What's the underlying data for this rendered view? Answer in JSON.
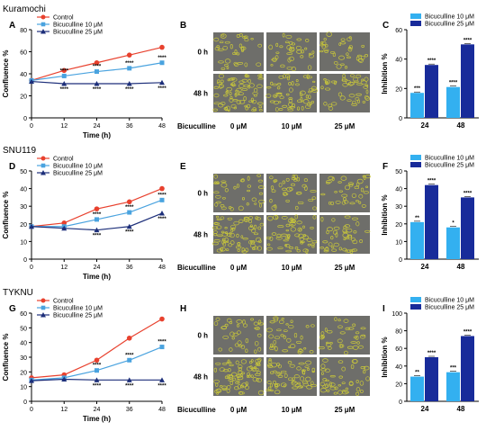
{
  "rows": [
    {
      "name": "Kuramochi",
      "labels": {
        "line": "A",
        "images": "B",
        "bar": "C"
      },
      "line_chart": {
        "type": "line",
        "title": "",
        "xlabel": "Time (h)",
        "ylabel": "Confluence %",
        "xlim": [
          0,
          48
        ],
        "ylim": [
          0,
          80
        ],
        "xticks": [
          "0",
          "12",
          "24",
          "36",
          "48"
        ],
        "yticks": [
          "0",
          "20",
          "40",
          "60",
          "80"
        ],
        "x": [
          0,
          12,
          24,
          36,
          48
        ],
        "series": [
          {
            "name": "Control",
            "values": [
              34,
              43,
              50,
              57,
              64
            ],
            "color": "#e8412e",
            "marker": "circle",
            "stars": [
              "",
              "",
              "",
              "",
              ""
            ]
          },
          {
            "name": "Bicuculline 10 μM",
            "values": [
              34,
              38,
              42,
              45,
              50
            ],
            "color": "#4aa3df",
            "marker": "square",
            "stars": [
              "",
              "****",
              "****",
              "****",
              "****"
            ]
          },
          {
            "name": "Bicuculline 25 μM",
            "values": [
              33,
              31,
              31,
              31,
              32
            ],
            "color": "#1d2f7a",
            "marker": "triangle",
            "stars": [
              "",
              "****",
              "****",
              "****",
              "****"
            ]
          }
        ]
      },
      "images": {
        "row_labels": [
          "0 h",
          "48 h"
        ],
        "col_labels": [
          "0 μM",
          "10 μM",
          "25 μM"
        ],
        "group_label": "Bicuculline"
      },
      "bar_chart": {
        "type": "bar",
        "title": "",
        "xlabel": "",
        "ylabel": "Inhibition %",
        "ylim": [
          0,
          60
        ],
        "yticks": [
          "0",
          "20",
          "40",
          "60"
        ],
        "categories": [
          "24",
          "48"
        ],
        "series": [
          {
            "name": "Bicuculline 10 μM",
            "values": [
              17,
              21
            ],
            "stars": [
              "***",
              "****"
            ],
            "color": "#33b0f0"
          },
          {
            "name": "Bicuculline 25 μM",
            "values": [
              36,
              50
            ],
            "stars": [
              "****",
              "****"
            ],
            "color": "#182b9a"
          }
        ]
      }
    },
    {
      "name": "SNU119",
      "labels": {
        "line": "D",
        "images": "E",
        "bar": "F"
      },
      "line_chart": {
        "type": "line",
        "title": "",
        "xlabel": "Time (h)",
        "ylabel": "Confluence %",
        "xlim": [
          0,
          48
        ],
        "ylim": [
          0,
          50
        ],
        "xticks": [
          "0",
          "12",
          "24",
          "36",
          "48"
        ],
        "yticks": [
          "0",
          "10",
          "20",
          "30",
          "40",
          "50"
        ],
        "x": [
          0,
          12,
          24,
          36,
          48
        ],
        "series": [
          {
            "name": "Control",
            "values": [
              18.5,
              20.5,
              28.5,
              32.5,
              40
            ],
            "color": "#e8412e",
            "marker": "circle",
            "stars": [
              "",
              "",
              "",
              "",
              ""
            ]
          },
          {
            "name": "Bicuculline 10 μM",
            "values": [
              18.5,
              18.5,
              22.5,
              26.5,
              33.5
            ],
            "color": "#4aa3df",
            "marker": "square",
            "stars": [
              "",
              "",
              "****",
              "****",
              "****"
            ]
          },
          {
            "name": "Bicuculline 25 μM",
            "values": [
              18.5,
              17.5,
              16.5,
              18.5,
              26
            ],
            "color": "#1d2f7a",
            "marker": "triangle",
            "stars": [
              "",
              "",
              "****",
              "****",
              "****"
            ]
          }
        ]
      },
      "images": {
        "row_labels": [
          "0 h",
          "48 h"
        ],
        "col_labels": [
          "0 μM",
          "10 μM",
          "25 μM"
        ],
        "group_label": "Bicuculline"
      },
      "bar_chart": {
        "type": "bar",
        "title": "",
        "xlabel": "",
        "ylabel": "Inhibition %",
        "ylim": [
          0,
          50
        ],
        "yticks": [
          "0",
          "10",
          "20",
          "30",
          "40",
          "50"
        ],
        "categories": [
          "24",
          "48"
        ],
        "series": [
          {
            "name": "Bicuculline 10 μM",
            "values": [
              21,
              18
            ],
            "stars": [
              "**",
              "*"
            ],
            "color": "#33b0f0"
          },
          {
            "name": "Bicuculline 25 μM",
            "values": [
              42,
              35
            ],
            "stars": [
              "****",
              "****"
            ],
            "color": "#182b9a"
          }
        ]
      }
    },
    {
      "name": "TYKNU",
      "labels": {
        "line": "G",
        "images": "H",
        "bar": "I"
      },
      "line_chart": {
        "type": "line",
        "title": "",
        "xlabel": "Time (h)",
        "ylabel": "Confluence %",
        "xlim": [
          0,
          48
        ],
        "ylim": [
          0,
          60
        ],
        "xticks": [
          "0",
          "12",
          "24",
          "36",
          "48"
        ],
        "yticks": [
          "0",
          "10",
          "20",
          "30",
          "40",
          "50",
          "60"
        ],
        "x": [
          0,
          12,
          24,
          36,
          48
        ],
        "series": [
          {
            "name": "Control",
            "values": [
              16,
              18,
              28,
              43,
              56
            ],
            "color": "#e8412e",
            "marker": "circle",
            "stars": [
              "",
              "",
              "",
              "",
              ""
            ]
          },
          {
            "name": "Bicuculline 10 μM",
            "values": [
              14.5,
              16,
              21,
              28,
              37
            ],
            "color": "#4aa3df",
            "marker": "square",
            "stars": [
              "",
              "",
              "****",
              "****",
              "****"
            ]
          },
          {
            "name": "Bicuculline 25 μM",
            "values": [
              14,
              15,
              14.5,
              14.5,
              14.5
            ],
            "color": "#1d2f7a",
            "marker": "triangle",
            "stars": [
              "",
              "",
              "****",
              "****",
              "****"
            ]
          }
        ]
      },
      "images": {
        "row_labels": [
          "0 h",
          "48 h"
        ],
        "col_labels": [
          "0 μM",
          "10 μM",
          "25 μM"
        ],
        "group_label": "Bicuculline"
      },
      "bar_chart": {
        "type": "bar",
        "title": "",
        "xlabel": "",
        "ylabel": "Inhibition %",
        "ylim": [
          0,
          100
        ],
        "yticks": [
          "0",
          "20",
          "40",
          "60",
          "80",
          "100"
        ],
        "categories": [
          "24",
          "48"
        ],
        "series": [
          {
            "name": "Bicuculline 10 μM",
            "values": [
              28,
              33
            ],
            "stars": [
              "**",
              "***"
            ],
            "color": "#33b0f0"
          },
          {
            "name": "Bicuculline 25 μM",
            "values": [
              50,
              74
            ],
            "stars": [
              "****",
              "****"
            ],
            "color": "#182b9a"
          }
        ]
      }
    }
  ],
  "chart_data": [
    {
      "type": "line",
      "panel": "A",
      "cell_line": "Kuramochi",
      "x": [
        0,
        12,
        24,
        36,
        48
      ],
      "xlabel": "Time (h)",
      "ylabel": "Confluence %",
      "ylim": [
        0,
        80
      ],
      "series": [
        {
          "name": "Control",
          "values": [
            34,
            43,
            50,
            57,
            64
          ]
        },
        {
          "name": "Bicuculline 10 μM",
          "values": [
            34,
            38,
            42,
            45,
            50
          ]
        },
        {
          "name": "Bicuculline 25 μM",
          "values": [
            33,
            31,
            31,
            31,
            32
          ]
        }
      ]
    },
    {
      "type": "bar",
      "panel": "C",
      "cell_line": "Kuramochi",
      "categories": [
        "24",
        "48"
      ],
      "ylabel": "Inhibition %",
      "ylim": [
        0,
        60
      ],
      "series": [
        {
          "name": "Bicuculline 10 μM",
          "values": [
            17,
            21
          ]
        },
        {
          "name": "Bicuculline 25 μM",
          "values": [
            36,
            50
          ]
        }
      ]
    },
    {
      "type": "line",
      "panel": "D",
      "cell_line": "SNU119",
      "x": [
        0,
        12,
        24,
        36,
        48
      ],
      "xlabel": "Time (h)",
      "ylabel": "Confluence %",
      "ylim": [
        0,
        50
      ],
      "series": [
        {
          "name": "Control",
          "values": [
            18.5,
            20.5,
            28.5,
            32.5,
            40
          ]
        },
        {
          "name": "Bicuculline 10 μM",
          "values": [
            18.5,
            18.5,
            22.5,
            26.5,
            33.5
          ]
        },
        {
          "name": "Bicuculline 25 μM",
          "values": [
            18.5,
            17.5,
            16.5,
            18.5,
            26
          ]
        }
      ]
    },
    {
      "type": "bar",
      "panel": "F",
      "cell_line": "SNU119",
      "categories": [
        "24",
        "48"
      ],
      "ylabel": "Inhibition %",
      "ylim": [
        0,
        50
      ],
      "series": [
        {
          "name": "Bicuculline 10 μM",
          "values": [
            21,
            18
          ]
        },
        {
          "name": "Bicuculline 25 μM",
          "values": [
            42,
            35
          ]
        }
      ]
    },
    {
      "type": "line",
      "panel": "G",
      "cell_line": "TYKNU",
      "x": [
        0,
        12,
        24,
        36,
        48
      ],
      "xlabel": "Time (h)",
      "ylabel": "Confluence %",
      "ylim": [
        0,
        60
      ],
      "series": [
        {
          "name": "Control",
          "values": [
            16,
            18,
            28,
            43,
            56
          ]
        },
        {
          "name": "Bicuculline 10 μM",
          "values": [
            14.5,
            16,
            21,
            28,
            37
          ]
        },
        {
          "name": "Bicuculline 25 μM",
          "values": [
            14,
            15,
            14.5,
            14.5,
            14.5
          ]
        }
      ]
    },
    {
      "type": "bar",
      "panel": "I",
      "cell_line": "TYKNU",
      "categories": [
        "24",
        "48"
      ],
      "ylabel": "Inhibition %",
      "ylim": [
        0,
        100
      ],
      "series": [
        {
          "name": "Bicuculline 10 μM",
          "values": [
            28,
            33
          ]
        },
        {
          "name": "Bicuculline 25 μM",
          "values": [
            50,
            74
          ]
        }
      ]
    }
  ]
}
